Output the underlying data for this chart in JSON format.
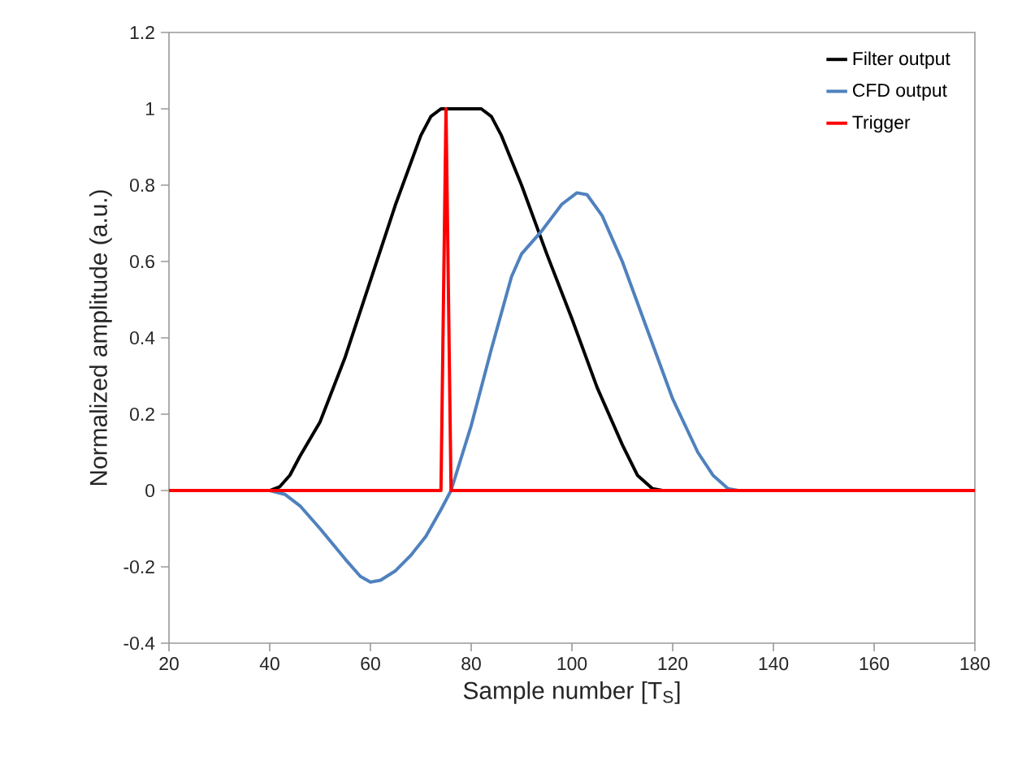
{
  "chart_data": {
    "type": "line",
    "xlabel": "Sample number [T$_{S}$]",
    "ylabel": "Normalized amplitude (a.u.)",
    "xlim": [
      20,
      180
    ],
    "xticks": [
      20,
      40,
      60,
      80,
      100,
      120,
      140,
      160,
      180
    ],
    "ylim": [
      -0.4,
      1.2
    ],
    "yticks": [
      -0.4,
      -0.2,
      0,
      0.2,
      0.4,
      0.6,
      0.8,
      1,
      1.2
    ],
    "grid": false,
    "legend": "top right",
    "marker": "none",
    "line_style": "solid",
    "series": [
      {
        "name": "Filter output",
        "color": "#000000",
        "x": [
          40,
          42,
          44,
          46,
          50,
          55,
          60,
          65,
          70,
          72,
          74,
          82,
          84,
          86,
          90,
          95,
          100,
          105,
          110,
          113,
          116,
          118
        ],
        "values": [
          0,
          0.01,
          0.04,
          0.09,
          0.18,
          0.35,
          0.55,
          0.75,
          0.93,
          0.98,
          1,
          1,
          0.98,
          0.93,
          0.8,
          0.62,
          0.45,
          0.27,
          0.12,
          0.04,
          0.005,
          0
        ]
      },
      {
        "name": "CFD output",
        "color": "#4f81bd",
        "x": [
          40,
          43,
          46,
          50,
          55,
          58,
          60,
          62,
          65,
          68,
          71,
          74,
          76,
          80,
          84,
          88,
          90,
          94,
          98,
          101,
          103,
          106,
          110,
          115,
          120,
          125,
          128,
          131,
          133,
          150
        ],
        "values": [
          0,
          -0.01,
          -0.04,
          -0.1,
          -0.18,
          -0.225,
          -0.24,
          -0.235,
          -0.21,
          -0.17,
          -0.12,
          -0.05,
          0,
          0.17,
          0.37,
          0.56,
          0.62,
          0.68,
          0.75,
          0.78,
          0.775,
          0.72,
          0.6,
          0.42,
          0.24,
          0.1,
          0.04,
          0.005,
          0,
          0
        ]
      },
      {
        "name": "Trigger",
        "color": "#ff0000",
        "x": [
          20,
          74,
          75,
          76,
          180
        ],
        "values": [
          0,
          0,
          1,
          0,
          0
        ]
      }
    ]
  }
}
